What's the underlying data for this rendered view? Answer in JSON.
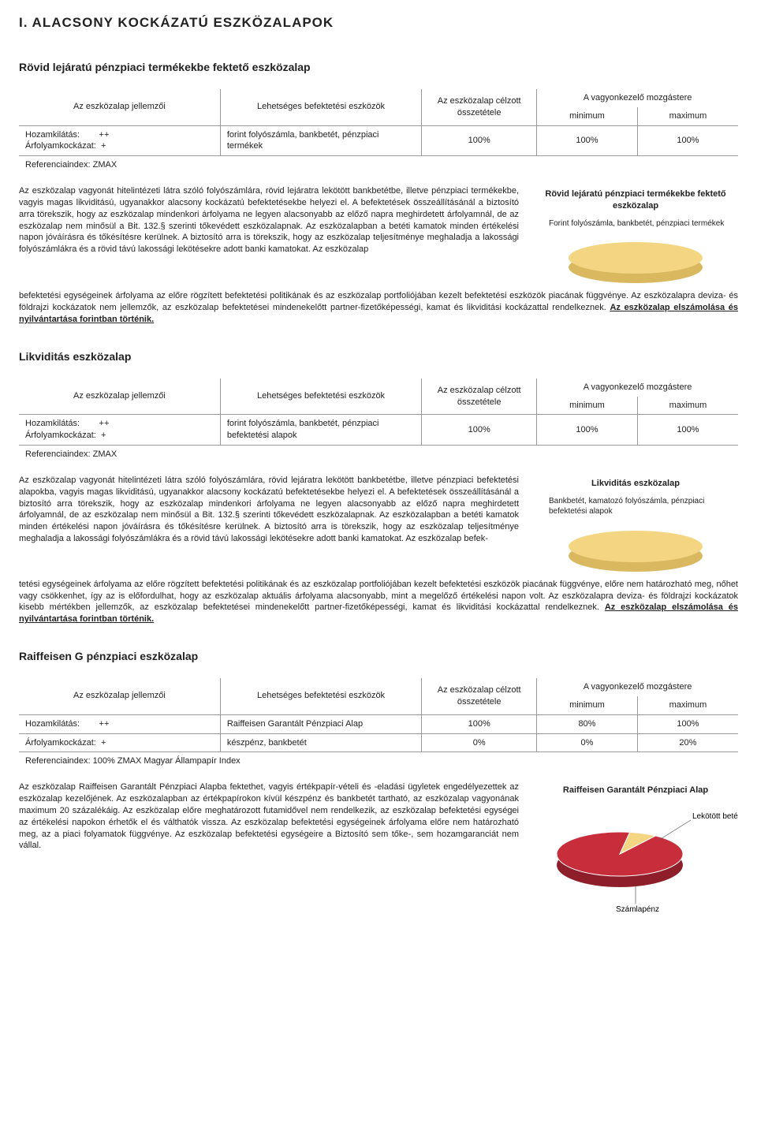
{
  "page_title": "I. ALACSONY KOCKÁZATÚ ESZKÖZALAPOK",
  "sections": [
    {
      "title": "Rövid lejáratú pénzpiaci termékekbe fektető eszközalap",
      "table": {
        "headers": {
          "c1": "Az eszközalap jellemzői",
          "c2": "Lehetséges befektetési eszközök",
          "c3": "Az eszközalap célzott összetétele",
          "c4a": "A vagyonkezelő mozgástere",
          "c4b_min": "minimum",
          "c4b_max": "maximum"
        },
        "row1": {
          "c1a_label": "Hozamkilátás:",
          "c1a_val": "++",
          "c1b_label": "Árfolyamkockázat:",
          "c1b_val": "+",
          "c2": "forint folyószámla, bankbetét, pénzpiaci termékek",
          "c3": "100%",
          "c4min": "100%",
          "c4max": "100%"
        },
        "footer": "Referenciaindex: ZMAX"
      },
      "chart": {
        "title": "Rövid lejáratú pénzpiaci termékekbe fektető eszközalap",
        "legend": "Forint folyószámla, bankbetét, pénzpiaci termékek",
        "color_top": "#f3d582",
        "color_side": "#d9b860"
      },
      "para_top": "Az eszközalap vagyonát hitelintézeti látra szóló folyószámlára, rövid lejáratra lekötött bankbetétbe, illetve pénzpiaci termékekbe, vagyis magas likviditású, ugyanakkor alacsony kockázatú befektetésekbe helyezi el. A befektetések összeállításánál a biztosító arra törekszik, hogy az eszközalap mindenkori árfolyama ne legyen alacsonyabb az előző napra meghirdetett árfolyamnál, de az eszközalap nem minősül a Bit. 132.§ szerinti tőkevédett eszközalapnak. Az eszközalapban a betéti kamatok minden értékelési napon jóváírásra és tőkésítésre kerülnek.\nA biztosító arra is törekszik, hogy az eszközalap teljesítménye meghaladja a lakossági folyószámlákra és a rövid távú lakossági lekötésekre adott banki kamatokat. Az eszközalap",
      "para_full": "befektetési egységeinek árfolyama az előre rögzített befektetési politikának és az eszközalap portfoliójában kezelt befektetési eszközök piacának függvénye. Az eszközalapra deviza- és földrajzi kockázatok nem jellemzők, az eszközalap befektetései mindenekelőtt partner-fizetőképességi, kamat és likviditási kockázattal rendelkeznek. ",
      "para_under": "Az eszközalap elszámolása és nyilvántartása forintban történik."
    },
    {
      "title": "Likviditás eszközalap",
      "table": {
        "headers": {
          "c1": "Az eszközalap jellemzői",
          "c2": "Lehetséges befektetési eszközök",
          "c3": "Az eszközalap célzott összetétele",
          "c4a": "A vagyonkezelő mozgástere",
          "c4b_min": "minimum",
          "c4b_max": "maximum"
        },
        "row1": {
          "c1a_label": "Hozamkilátás:",
          "c1a_val": "++",
          "c1b_label": "Árfolyamkockázat:",
          "c1b_val": "+",
          "c2": "forint folyószámla, bankbetét, pénzpiaci befektetési alapok",
          "c3": "100%",
          "c4min": "100%",
          "c4max": "100%"
        },
        "footer": "Referenciaindex: ZMAX"
      },
      "chart": {
        "title": "Likviditás eszközalap",
        "legend": "Bankbetét, kamatozó folyószámla, pénzpiaci befektetési alapok",
        "color_top": "#f3d582",
        "color_side": "#d9b860"
      },
      "para_top": "Az eszközalap vagyonát hitelintézeti látra szóló folyószámlára, rövid lejáratra lekötött bankbetétbe, illetve pénzpiaci befektetési alapokba, vagyis magas likviditású, ugyanakkor alacsony kockázatú befektetésekbe helyezi el. A befektetések összeállításánál a biztosító arra törekszik, hogy az eszközalap mindenkori árfolyama ne legyen alacsonyabb az előző napra meghirdetett árfolyamnál, de az eszközalap nem minősül a Bit. 132.§ szerinti tőkevédett eszközalapnak. Az eszközalapban a betéti kamatok minden értékelési napon jóváírásra és tőkésítésre kerülnek.\nA biztosító arra is törekszik, hogy az eszközalap teljesítménye meghaladja a lakossági folyószámlákra és a rövid távú lakossági lekötésekre adott banki kamatokat. Az eszközalap befek-",
      "para_full": "tetési egységeinek árfolyama az előre rögzített befektetési politikának és az eszközalap portfoliójában kezelt befektetési eszközök piacának függvénye, előre nem határozható meg, nőhet vagy csökkenhet, így az is előfordulhat, hogy az eszközalap aktuális árfolyama alacsonyabb, mint a megelőző értékelési napon volt. Az eszközalapra deviza- és földrajzi kockázatok kisebb mértékben jellemzők, az eszközalap befektetései mindenekelőtt partner-fizetőképességi, kamat és likviditási kockázattal rendelkeznek. ",
      "para_under": "Az eszközalap elszámolása és nyilvántartása forintban történik."
    },
    {
      "title": "Raiffeisen G pénzpiaci eszközalap",
      "table3": {
        "headers": {
          "c1": "Az eszközalap jellemzői",
          "c2": "Lehetséges befektetési eszközök",
          "c3": "Az eszközalap célzott összetétele",
          "c4a": "A vagyonkezelő mozgástere",
          "c4b_min": "minimum",
          "c4b_max": "maximum"
        },
        "rows": [
          {
            "c1_label": "Hozamkilátás:",
            "c1_val": "++",
            "c2": "Raiffeisen Garantált Pénzpiaci Alap",
            "c3": "100%",
            "c4min": "80%",
            "c4max": "100%"
          },
          {
            "c1_label": "Árfolyamkockázat:",
            "c1_val": "+",
            "c2": "készpénz, bankbetét",
            "c3": "0%",
            "c4min": "0%",
            "c4max": "20%"
          }
        ],
        "footer": "Referenciaindex: 100% ZMAX Magyar Állampapír Index"
      },
      "chart3": {
        "title": "Raiffeisen Garantált Pénzpiaci Alap",
        "slices": [
          {
            "label": "Lekötött betét",
            "value": 93,
            "color_top": "#c82d3c",
            "color_side": "#8e1f2a"
          },
          {
            "label": "Számlapénz",
            "value": 7,
            "color_top": "#f3d582",
            "color_side": "#d9b860"
          }
        ]
      },
      "para_top": "Az eszközalap Raiffeisen Garantált Pénzpiaci Alapba fektethet, vagyis értékpapír-vételi és -eladási ügyletek engedélyezettek az eszközalap kezelőjének. Az eszközalapban az értékpapírokon kívül készpénz és bankbetét tartható, az eszközalap vagyonának maximum 20 százalékáig. Az eszközalap előre meghatározott futamidővel nem rendelkezik, az eszközalap befektetési egységei az értékelési napokon érhetők el és válthatók vissza. Az eszközalap befektetési egységeinek árfolyama előre nem határozható meg, az a piaci folyamatok függvénye. Az eszközalap befektetési egységeire a Biztosító sem tőke-, sem hozamgaranciát nem vállal."
    }
  ]
}
